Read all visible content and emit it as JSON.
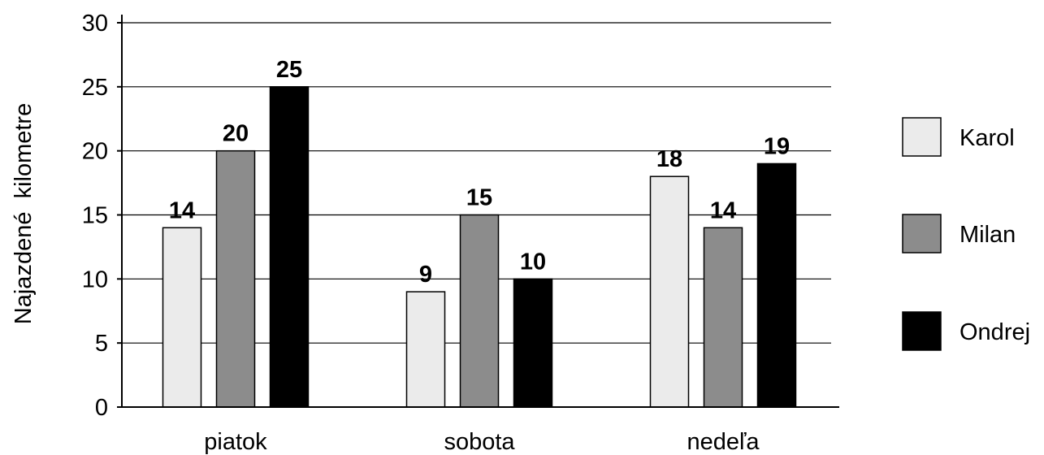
{
  "chart_data": {
    "type": "bar",
    "title": "",
    "xlabel": "",
    "ylabel": "Najazdené  kilometre",
    "categories": [
      "piatok",
      "sobota",
      "nedeľa"
    ],
    "series": [
      {
        "name": "Karol",
        "values": [
          14,
          9,
          18
        ],
        "color": "#ebebeb"
      },
      {
        "name": "Milan",
        "values": [
          20,
          15,
          14
        ],
        "color": "#8c8c8c"
      },
      {
        "name": "Ondrej",
        "values": [
          25,
          10,
          19
        ],
        "color": "#000000"
      }
    ],
    "ylim": [
      0,
      30
    ],
    "yticks": [
      "0",
      "5",
      "10",
      "15",
      "20",
      "25",
      "30"
    ],
    "grid": true,
    "legend_position": "right"
  }
}
